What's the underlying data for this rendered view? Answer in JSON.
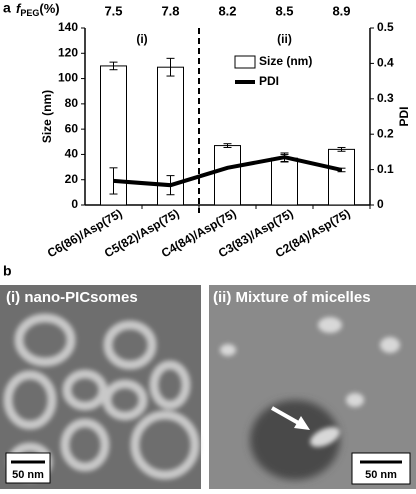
{
  "panel_labels": [
    "a",
    "b"
  ],
  "chart_data": {
    "type": "bar",
    "categories": [
      "C6(86)/Asp(75)",
      "C5(82)/Asp(75)",
      "C4(84)/Asp(75)",
      "C3(83)/Asp(75)",
      "C2(84)/Asp(75)"
    ],
    "series": [
      {
        "name": "Size (nm)",
        "type": "bar",
        "color": "#ffffff",
        "values": [
          110,
          109,
          47,
          37,
          44
        ],
        "errors": [
          3,
          7,
          1.5,
          3,
          1.5
        ]
      },
      {
        "name": "PDI",
        "type": "line",
        "axis": "y2",
        "color": "#000000",
        "values": [
          0.068,
          0.056,
          0.105,
          0.135,
          0.099
        ],
        "errors": [
          0.037,
          0.027,
          0,
          0.012,
          0.005
        ]
      }
    ],
    "ylabel": "Size (nm)",
    "y2label": "PDI",
    "ylim": [
      0,
      140
    ],
    "yticks": [
      0,
      20,
      40,
      60,
      80,
      100,
      120,
      140
    ],
    "y2lim": [
      0,
      0.5
    ],
    "y2ticks": [
      0,
      0.1,
      0.2,
      0.3,
      0.4,
      0.5
    ],
    "top_axis_label": {
      "symbol": "f",
      "subscript": "PEG",
      "unit": "(%)"
    },
    "top_ticks": [
      7.5,
      7.8,
      8.2,
      8.5,
      8.9
    ],
    "annotations": [
      "(i)",
      "(ii)"
    ],
    "legend": "upper right"
  },
  "images": [
    {
      "title": "(i) nano-PICsomes",
      "scale_bar": "50 nm"
    },
    {
      "title": "(ii) Mixture of micelles",
      "scale_bar": "50 nm"
    }
  ]
}
